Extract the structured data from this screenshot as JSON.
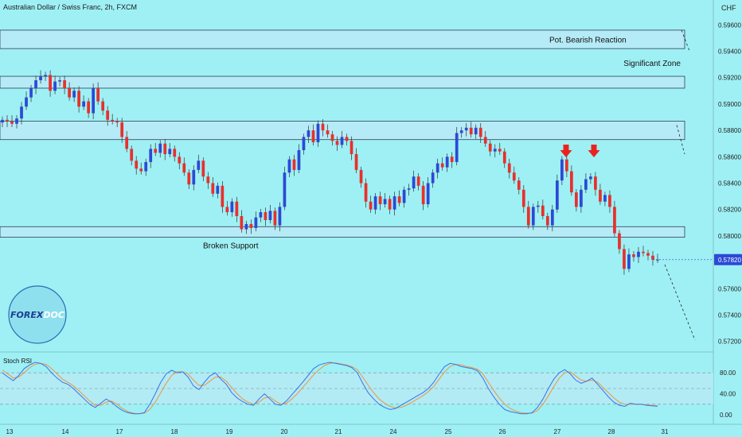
{
  "header": {
    "title": "Australian Dollar / Swiss Franc, 2h, FXCM",
    "currency": "CHF"
  },
  "logo": {
    "text_a": "FOREX",
    "text_b": "DOC"
  },
  "zones": [
    {
      "label": "Pot. Bearish Reaction",
      "top": 0.5956,
      "bottom": 0.5942
    },
    {
      "label": "Significant Zone",
      "top": 0.5921,
      "bottom": 0.5912
    },
    {
      "label": "",
      "top": 0.5887,
      "bottom": 0.5873
    },
    {
      "label": "Broken Support",
      "top": 0.5807,
      "bottom": 0.5799
    }
  ],
  "colors": {
    "up": "#2c49d6",
    "down": "#e8302c",
    "zone_fill": "#bfe8f7",
    "zone_border": "#2b3f55",
    "arrow": "#e8231f",
    "rsi_k": "#3f72e8",
    "rsi_d": "#f0963b",
    "bg": "#9ff0f4"
  },
  "chart_data": {
    "type": "candlestick",
    "title": "Australian Dollar / Swiss Franc, 2h, FXCM",
    "ylim": [
      0.5712,
      0.5968
    ],
    "price_ticks": [
      "0.59600",
      "0.59400",
      "0.59200",
      "0.59000",
      "0.58800",
      "0.58600",
      "0.58400",
      "0.58200",
      "0.58000",
      "0.57800",
      "0.57600",
      "0.57400",
      "0.57200"
    ],
    "price_tick_values": [
      0.596,
      0.594,
      0.592,
      0.59,
      0.588,
      0.586,
      0.584,
      0.582,
      0.58,
      0.578,
      0.576,
      0.574,
      0.572
    ],
    "last_price": "0.57820",
    "last_price_value": 0.5782,
    "x_ticks": [
      "13",
      "14",
      "17",
      "18",
      "19",
      "20",
      "21",
      "24",
      "25",
      "26",
      "27",
      "28",
      "31"
    ],
    "closes": [
      0.5888,
      0.5887,
      0.5885,
      0.5889,
      0.5898,
      0.5905,
      0.5912,
      0.5918,
      0.5921,
      0.5922,
      0.591,
      0.5917,
      0.5918,
      0.5912,
      0.5905,
      0.591,
      0.5898,
      0.5902,
      0.5893,
      0.5912,
      0.5902,
      0.5895,
      0.5888,
      0.5887,
      0.5886,
      0.5875,
      0.5866,
      0.5857,
      0.5851,
      0.5849,
      0.5856,
      0.5866,
      0.5863,
      0.587,
      0.5862,
      0.5866,
      0.586,
      0.5855,
      0.5848,
      0.5839,
      0.585,
      0.5857,
      0.5845,
      0.584,
      0.5832,
      0.5838,
      0.5822,
      0.5818,
      0.5826,
      0.5815,
      0.5805,
      0.5809,
      0.5806,
      0.5814,
      0.5818,
      0.5812,
      0.5819,
      0.5808,
      0.5822,
      0.5848,
      0.5858,
      0.585,
      0.5865,
      0.5875,
      0.588,
      0.5871,
      0.5885,
      0.588,
      0.5877,
      0.5872,
      0.5869,
      0.5875,
      0.5872,
      0.5862,
      0.585,
      0.584,
      0.5826,
      0.582,
      0.583,
      0.5824,
      0.5828,
      0.582,
      0.583,
      0.5825,
      0.5835,
      0.5836,
      0.5845,
      0.5838,
      0.5824,
      0.584,
      0.5848,
      0.5855,
      0.5852,
      0.586,
      0.5856,
      0.5878,
      0.588,
      0.5882,
      0.5877,
      0.5882,
      0.5875,
      0.587,
      0.5864,
      0.5866,
      0.5864,
      0.5855,
      0.5848,
      0.5842,
      0.5835,
      0.5822,
      0.5808,
      0.5822,
      0.5823,
      0.5815,
      0.5808,
      0.582,
      0.5842,
      0.5858,
      0.5849,
      0.5833,
      0.5822,
      0.5835,
      0.5843,
      0.5845,
      0.5835,
      0.5826,
      0.5831,
      0.5822,
      0.5802,
      0.579,
      0.5775,
      0.5786,
      0.5784,
      0.5788,
      0.5787,
      0.5785,
      0.5782,
      0.5782
    ],
    "stoch_rsi": {
      "label": "Stoch RSI",
      "ticks": [
        "80.00",
        "40.00",
        "0.00"
      ],
      "tick_values": [
        80,
        40,
        0
      ],
      "levels": [
        80,
        50,
        20
      ],
      "k": [
        80,
        72,
        65,
        75,
        88,
        95,
        100,
        98,
        92,
        80,
        70,
        62,
        58,
        50,
        40,
        30,
        20,
        14,
        22,
        30,
        24,
        15,
        8,
        4,
        2,
        2,
        4,
        20,
        40,
        62,
        78,
        85,
        80,
        82,
        72,
        55,
        48,
        62,
        74,
        80,
        68,
        58,
        42,
        32,
        25,
        20,
        18,
        30,
        40,
        30,
        20,
        18,
        26,
        38,
        50,
        62,
        75,
        88,
        95,
        98,
        100,
        98,
        96,
        94,
        90,
        80,
        60,
        42,
        30,
        20,
        14,
        10,
        12,
        18,
        24,
        30,
        36,
        42,
        50,
        62,
        78,
        92,
        98,
        96,
        92,
        90,
        88,
        84,
        70,
        50,
        34,
        20,
        10,
        6,
        4,
        2,
        2,
        4,
        14,
        30,
        50,
        68,
        80,
        86,
        78,
        66,
        60,
        64,
        70,
        58,
        46,
        34,
        24,
        18,
        16,
        22,
        20,
        20,
        18,
        17,
        16
      ],
      "d": [
        85,
        78,
        70,
        72,
        80,
        90,
        96,
        98,
        96,
        88,
        78,
        68,
        62,
        55,
        46,
        36,
        26,
        18,
        18,
        24,
        26,
        20,
        12,
        6,
        3,
        2,
        3,
        10,
        24,
        42,
        60,
        75,
        82,
        82,
        78,
        66,
        56,
        56,
        64,
        72,
        72,
        64,
        52,
        40,
        30,
        24,
        20,
        24,
        32,
        34,
        26,
        20,
        22,
        30,
        40,
        52,
        64,
        76,
        86,
        94,
        98,
        99,
        97,
        95,
        92,
        86,
        72,
        56,
        42,
        30,
        22,
        16,
        13,
        14,
        18,
        24,
        30,
        36,
        44,
        54,
        68,
        82,
        92,
        96,
        95,
        92,
        90,
        87,
        78,
        62,
        46,
        32,
        20,
        12,
        7,
        4,
        3,
        3,
        8,
        20,
        36,
        54,
        70,
        80,
        82,
        74,
        66,
        64,
        66,
        62,
        52,
        42,
        32,
        24,
        20,
        20,
        20,
        20,
        19,
        18,
        17
      ]
    }
  }
}
